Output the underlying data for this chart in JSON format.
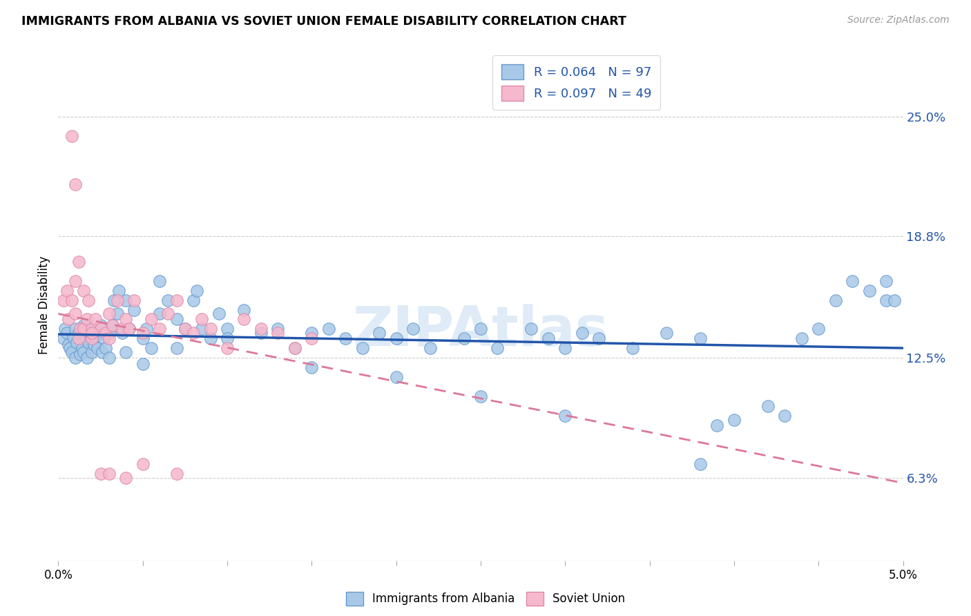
{
  "title": "IMMIGRANTS FROM ALBANIA VS SOVIET UNION FEMALE DISABILITY CORRELATION CHART",
  "source": "Source: ZipAtlas.com",
  "ylabel": "Female Disability",
  "right_yticks": [
    "25.0%",
    "18.8%",
    "12.5%",
    "6.3%"
  ],
  "right_ytick_vals": [
    0.25,
    0.188,
    0.125,
    0.063
  ],
  "xmin": 0.0,
  "xmax": 0.05,
  "ymin": 0.02,
  "ymax": 0.285,
  "albania_color": "#a8c8e8",
  "albania_edge": "#6699cc",
  "soviet_color": "#f5b8cc",
  "soviet_edge": "#dd88aa",
  "albania_line_color": "#2255aa",
  "soviet_line_color": "#dd7799",
  "albania_R": 0.064,
  "albania_N": 97,
  "soviet_R": 0.097,
  "soviet_N": 49,
  "watermark": "ZIPAtlas",
  "background_color": "#ffffff",
  "grid_color": "#cccccc",
  "albania_x": [
    0.0003,
    0.0004,
    0.0005,
    0.0006,
    0.0007,
    0.0008,
    0.0009,
    0.001,
    0.001,
    0.0011,
    0.0012,
    0.0013,
    0.0014,
    0.0015,
    0.0015,
    0.0016,
    0.0017,
    0.0018,
    0.0019,
    0.002,
    0.002,
    0.0021,
    0.0022,
    0.0023,
    0.0024,
    0.0025,
    0.0026,
    0.0027,
    0.0028,
    0.003,
    0.003,
    0.0032,
    0.0033,
    0.0035,
    0.0036,
    0.0038,
    0.004,
    0.004,
    0.0042,
    0.0045,
    0.005,
    0.005,
    0.0052,
    0.0055,
    0.006,
    0.006,
    0.0065,
    0.007,
    0.007,
    0.0075,
    0.008,
    0.0082,
    0.0085,
    0.009,
    0.0095,
    0.01,
    0.01,
    0.011,
    0.012,
    0.013,
    0.014,
    0.015,
    0.016,
    0.017,
    0.018,
    0.019,
    0.02,
    0.021,
    0.022,
    0.024,
    0.025,
    0.026,
    0.028,
    0.029,
    0.03,
    0.031,
    0.032,
    0.034,
    0.036,
    0.038,
    0.039,
    0.04,
    0.042,
    0.043,
    0.044,
    0.045,
    0.046,
    0.047,
    0.048,
    0.049,
    0.049,
    0.0495,
    0.038,
    0.03,
    0.025,
    0.02,
    0.015
  ],
  "albania_y": [
    0.135,
    0.14,
    0.138,
    0.132,
    0.13,
    0.128,
    0.136,
    0.14,
    0.125,
    0.133,
    0.138,
    0.127,
    0.13,
    0.142,
    0.128,
    0.135,
    0.125,
    0.133,
    0.138,
    0.14,
    0.128,
    0.132,
    0.136,
    0.13,
    0.138,
    0.142,
    0.128,
    0.135,
    0.13,
    0.138,
    0.125,
    0.142,
    0.155,
    0.148,
    0.16,
    0.138,
    0.155,
    0.128,
    0.14,
    0.15,
    0.135,
    0.122,
    0.14,
    0.13,
    0.165,
    0.148,
    0.155,
    0.145,
    0.13,
    0.14,
    0.155,
    0.16,
    0.14,
    0.135,
    0.148,
    0.14,
    0.135,
    0.15,
    0.138,
    0.14,
    0.13,
    0.138,
    0.14,
    0.135,
    0.13,
    0.138,
    0.135,
    0.14,
    0.13,
    0.135,
    0.14,
    0.13,
    0.14,
    0.135,
    0.13,
    0.138,
    0.135,
    0.13,
    0.138,
    0.135,
    0.09,
    0.093,
    0.1,
    0.095,
    0.135,
    0.14,
    0.155,
    0.165,
    0.16,
    0.155,
    0.165,
    0.155,
    0.07,
    0.095,
    0.105,
    0.115,
    0.12
  ],
  "soviet_x": [
    0.0003,
    0.0005,
    0.0006,
    0.0008,
    0.001,
    0.001,
    0.0012,
    0.0013,
    0.0015,
    0.0015,
    0.0017,
    0.0018,
    0.002,
    0.002,
    0.0022,
    0.0025,
    0.0028,
    0.003,
    0.003,
    0.0032,
    0.0035,
    0.0038,
    0.004,
    0.0042,
    0.0045,
    0.005,
    0.0055,
    0.006,
    0.0065,
    0.007,
    0.0075,
    0.008,
    0.0085,
    0.009,
    0.01,
    0.011,
    0.012,
    0.013,
    0.014,
    0.015,
    0.0008,
    0.001,
    0.0012,
    0.002,
    0.0025,
    0.003,
    0.004,
    0.005,
    0.007
  ],
  "soviet_y": [
    0.155,
    0.16,
    0.145,
    0.155,
    0.165,
    0.148,
    0.175,
    0.14,
    0.16,
    0.14,
    0.145,
    0.155,
    0.14,
    0.135,
    0.145,
    0.14,
    0.138,
    0.148,
    0.135,
    0.142,
    0.155,
    0.14,
    0.145,
    0.14,
    0.155,
    0.138,
    0.145,
    0.14,
    0.148,
    0.155,
    0.14,
    0.138,
    0.145,
    0.14,
    0.13,
    0.145,
    0.14,
    0.138,
    0.13,
    0.135,
    0.24,
    0.215,
    0.135,
    0.138,
    0.065,
    0.065,
    0.063,
    0.07,
    0.065
  ]
}
